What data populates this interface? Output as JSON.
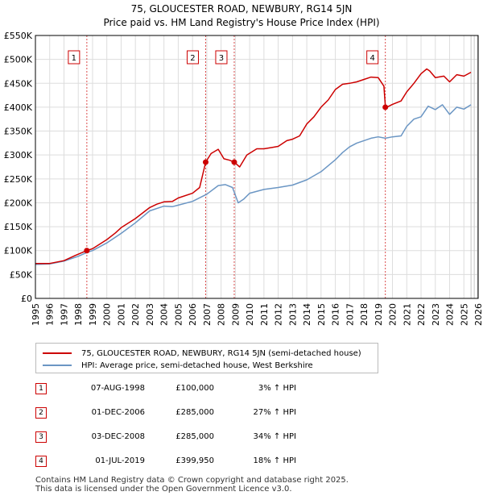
{
  "colors": {
    "price": "#cc0000",
    "hpi": "#6b96c4",
    "grid": "#dddddd",
    "marker_line": "#cc0000"
  },
  "chart_data": {
    "type": "line",
    "title": "75, GLOUCESTER ROAD, NEWBURY, RG14 5JN",
    "subtitle": "Price paid vs. HM Land Registry's House Price Index (HPI)",
    "xlabel": "",
    "ylabel": "",
    "xlim": [
      1995,
      2026
    ],
    "ylim": [
      0,
      550000
    ],
    "x_ticks": [
      1995,
      1996,
      1997,
      1998,
      1999,
      2000,
      2001,
      2002,
      2003,
      2004,
      2005,
      2006,
      2007,
      2008,
      2009,
      2010,
      2011,
      2012,
      2013,
      2014,
      2015,
      2016,
      2017,
      2018,
      2019,
      2020,
      2021,
      2022,
      2023,
      2024,
      2025,
      2026
    ],
    "y_ticks": [
      0,
      50000,
      100000,
      150000,
      200000,
      250000,
      300000,
      350000,
      400000,
      450000,
      500000,
      550000
    ],
    "y_tick_labels": [
      "£0",
      "£50K",
      "£100K",
      "£150K",
      "£200K",
      "£250K",
      "£300K",
      "£350K",
      "£400K",
      "£450K",
      "£500K",
      "£550K"
    ],
    "series": [
      {
        "name": "75, GLOUCESTER ROAD, NEWBURY, RG14 5JN (semi-detached house)",
        "color": "#cc0000",
        "x": [
          1995,
          1996,
          1997,
          1997.8,
          1998.6,
          1999,
          2000,
          2000.6,
          2001,
          2002,
          2003,
          2003.5,
          2004,
          2004.6,
          2005,
          2006,
          2006.5,
          2006.92,
          2007.3,
          2007.8,
          2008.2,
          2008.6,
          2008.92,
          2009.3,
          2009.8,
          2010.5,
          2011,
          2011.6,
          2012,
          2012.6,
          2013,
          2013.5,
          2014,
          2014.5,
          2015,
          2015.5,
          2016,
          2016.5,
          2017,
          2017.5,
          2018,
          2018.5,
          2019,
          2019.4,
          2019.5,
          2019.6,
          2020,
          2020.6,
          2021,
          2021.5,
          2022,
          2022.4,
          2022.6,
          2023,
          2023.6,
          2024,
          2024.5,
          2025,
          2025.5
        ],
        "y": [
          73000,
          73000,
          79000,
          90000,
          100000,
          104000,
          123000,
          137000,
          148000,
          167000,
          190000,
          197000,
          202000,
          203000,
          210000,
          220000,
          232000,
          285000,
          303000,
          312000,
          292000,
          289000,
          285000,
          275000,
          300000,
          313000,
          313000,
          316000,
          318000,
          330000,
          333000,
          340000,
          365000,
          380000,
          400000,
          415000,
          437000,
          448000,
          450000,
          453000,
          458000,
          463000,
          462000,
          444000,
          402000,
          399950,
          406000,
          413000,
          432000,
          450000,
          470000,
          480000,
          476000,
          462000,
          465000,
          453000,
          468000,
          465000,
          473000
        ]
      },
      {
        "name": "HPI: Average price, semi-detached house, West Berkshire",
        "color": "#6b96c4",
        "x": [
          1995,
          1996,
          1997,
          1998,
          1998.6,
          1999,
          2000,
          2001,
          2002,
          2003,
          2004,
          2004.6,
          2005,
          2006,
          2007,
          2007.8,
          2008.3,
          2008.8,
          2009.2,
          2009.6,
          2010,
          2011,
          2012,
          2013,
          2014,
          2015,
          2016,
          2016.5,
          2017,
          2017.5,
          2018,
          2018.5,
          2019,
          2019.5,
          2020,
          2020.6,
          2021,
          2021.5,
          2022,
          2022.5,
          2023,
          2023.5,
          2024,
          2024.5,
          2025,
          2025.5
        ],
        "y": [
          71000,
          72000,
          78000,
          88000,
          96000,
          100000,
          116000,
          136000,
          158000,
          183000,
          193000,
          192000,
          195000,
          203000,
          218000,
          236000,
          238000,
          232000,
          200000,
          208000,
          220000,
          228000,
          232000,
          237000,
          248000,
          265000,
          290000,
          305000,
          317000,
          325000,
          330000,
          335000,
          338000,
          335000,
          338000,
          340000,
          360000,
          375000,
          380000,
          402000,
          395000,
          405000,
          385000,
          400000,
          396000,
          405000
        ]
      }
    ],
    "events": [
      {
        "label": "1",
        "x": 1998.6,
        "y": 100000
      },
      {
        "label": "2",
        "x": 2006.92,
        "y": 285000
      },
      {
        "label": "3",
        "x": 2008.92,
        "y": 285000
      },
      {
        "label": "4",
        "x": 2019.5,
        "y": 399950
      }
    ]
  },
  "legend": {
    "price_label": "75, GLOUCESTER ROAD, NEWBURY, RG14 5JN (semi-detached house)",
    "hpi_label": "HPI: Average price, semi-detached house, West Berkshire"
  },
  "sales": [
    {
      "num": "1",
      "date": "07-AUG-1998",
      "price": "£100,000",
      "hpi": "3% ↑ HPI"
    },
    {
      "num": "2",
      "date": "01-DEC-2006",
      "price": "£285,000",
      "hpi": "27% ↑ HPI"
    },
    {
      "num": "3",
      "date": "03-DEC-2008",
      "price": "£285,000",
      "hpi": "34% ↑ HPI"
    },
    {
      "num": "4",
      "date": "01-JUL-2019",
      "price": "£399,950",
      "hpi": "18% ↑ HPI"
    }
  ],
  "footer": {
    "line1": "Contains HM Land Registry data © Crown copyright and database right 2025.",
    "line2": "This data is licensed under the Open Government Licence v3.0."
  }
}
